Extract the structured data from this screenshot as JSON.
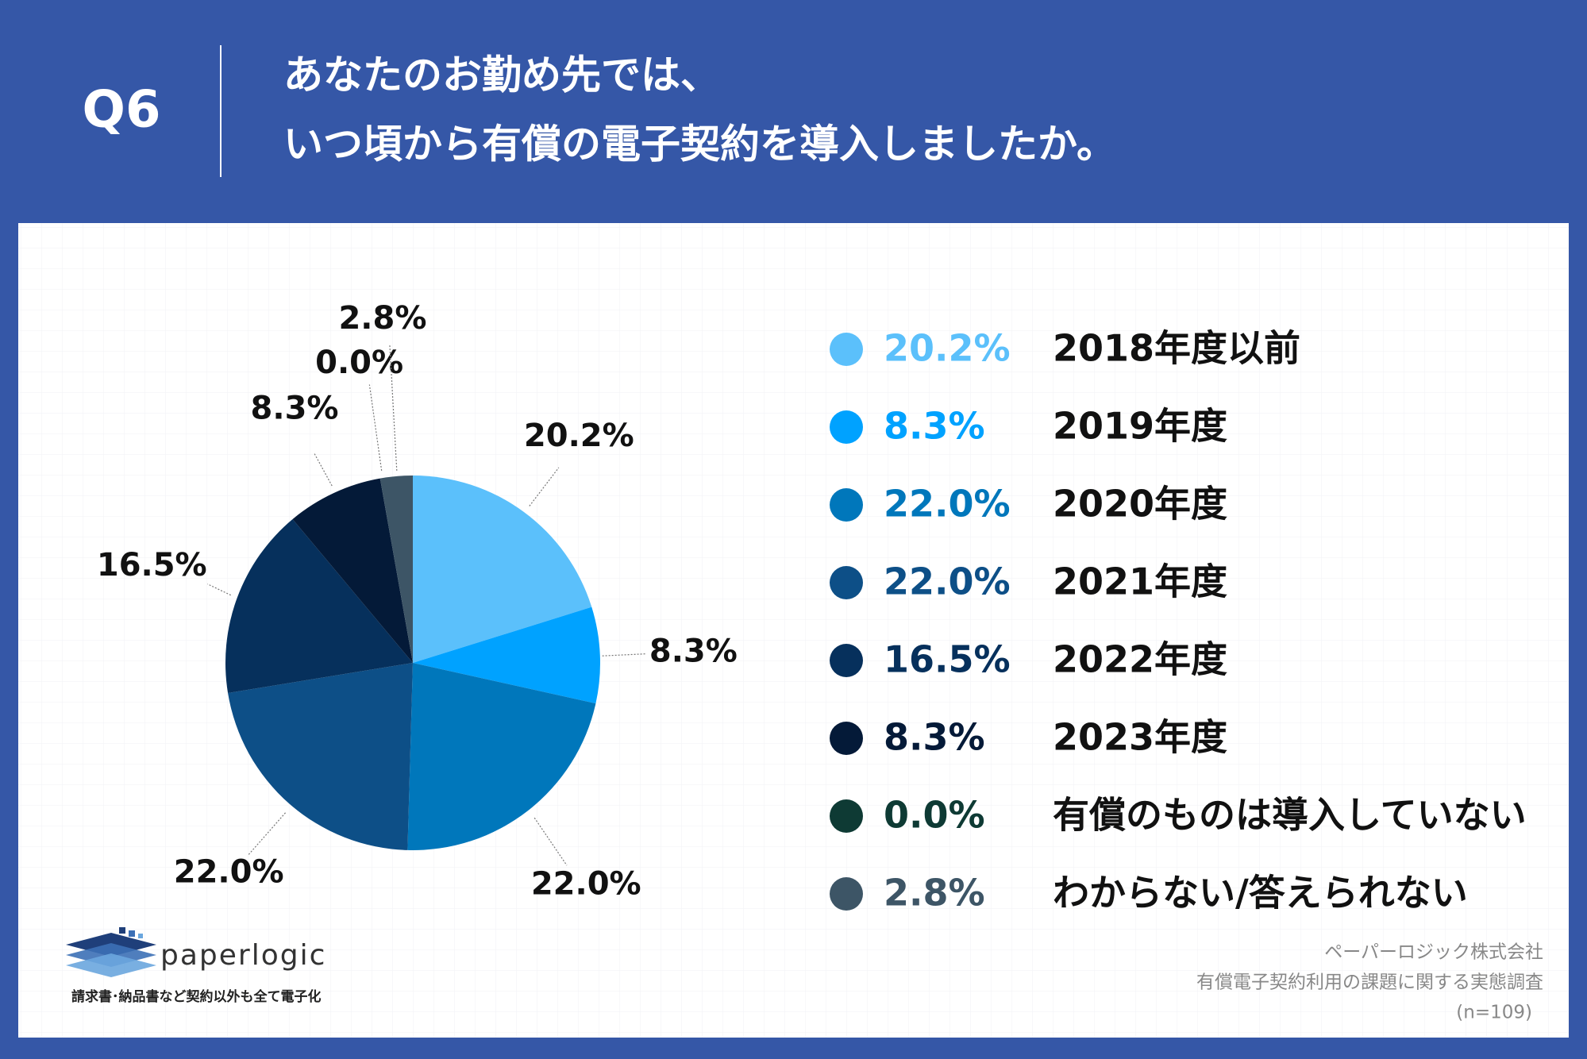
{
  "header": {
    "question": "Q6",
    "title_lines": [
      "あなたのお勤め先では、",
      "いつ頃から有償の電子契約を導入しましたか。"
    ]
  },
  "chart_data": {
    "type": "pie",
    "categories": [
      "2018年度以前",
      "2019年度",
      "2020年度",
      "2021年度",
      "2022年度",
      "2023年度",
      "有償のものは導入していない",
      "わからない/答えられない"
    ],
    "values": [
      20.2,
      8.3,
      22.0,
      22.0,
      16.5,
      8.3,
      0.0,
      2.8
    ],
    "value_labels": [
      "20.2%",
      "8.3%",
      "22.0%",
      "22.0%",
      "16.5%",
      "8.3%",
      "0.0%",
      "2.8%"
    ],
    "colors": [
      "#5bc0fb",
      "#00a2ff",
      "#0077bb",
      "#0d4f87",
      "#06305c",
      "#041a38",
      "#0e3a34",
      "#3d5566"
    ],
    "legend": "right"
  },
  "footer": {
    "logo": "paperlogic",
    "tagline": "請求書･納品書など契約以外も全て電子化",
    "source_lines": [
      "ペーパーロジック株式会社",
      "有償電子契約利用の課題に関する実態調査",
      "(n=109)"
    ]
  }
}
